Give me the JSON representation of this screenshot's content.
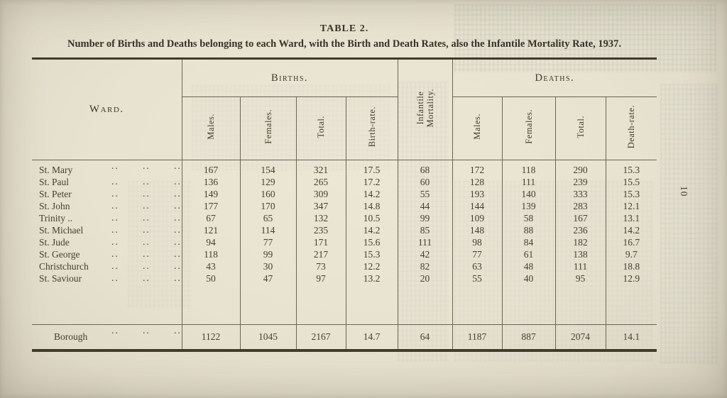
{
  "title": "TABLE 2.",
  "subtitle": "Number of Births and Deaths belonging to each Ward, with the Birth and Death Rates, also the Infantile Mortality Rate, 1937.",
  "page_number": "10",
  "table": {
    "col_ward": "Ward.",
    "group_births": "Births.",
    "group_deaths": "Deaths.",
    "col_infantile_line1": "Infantile",
    "col_infantile_line2": "Mortality.",
    "birth_columns": [
      "Males.",
      "Females.",
      "Total.",
      "Birth-rate."
    ],
    "death_columns": [
      "Males.",
      "Females.",
      "Total.",
      "Death-rate."
    ],
    "leader_dots": "..",
    "rows": [
      {
        "ward": "St. Mary",
        "suffix": "",
        "values": [
          "167",
          "154",
          "321",
          "17.5",
          "68",
          "172",
          "118",
          "290",
          "15.3"
        ]
      },
      {
        "ward": "St. Paul",
        "suffix": "",
        "values": [
          "136",
          "129",
          "265",
          "17.2",
          "60",
          "128",
          "111",
          "239",
          "15.5"
        ]
      },
      {
        "ward": "St. Peter",
        "suffix": "",
        "values": [
          "149",
          "160",
          "309",
          "14.2",
          "55",
          "193",
          "140",
          "333",
          "15.3"
        ]
      },
      {
        "ward": "St. John",
        "suffix": "",
        "values": [
          "177",
          "170",
          "347",
          "14.8",
          "44",
          "144",
          "139",
          "283",
          "12.1"
        ]
      },
      {
        "ward": "Trinity",
        "suffix": " ..",
        "values": [
          "67",
          "65",
          "132",
          "10.5",
          "99",
          "109",
          "58",
          "167",
          "13.1"
        ]
      },
      {
        "ward": "St. Michael",
        "suffix": "",
        "values": [
          "121",
          "114",
          "235",
          "14.2",
          "85",
          "148",
          "88",
          "236",
          "14.2"
        ]
      },
      {
        "ward": "St. Jude",
        "suffix": "",
        "values": [
          "94",
          "77",
          "171",
          "15.6",
          "111",
          "98",
          "84",
          "182",
          "16.7"
        ]
      },
      {
        "ward": "St. George",
        "suffix": "",
        "values": [
          "118",
          "99",
          "217",
          "15.3",
          "42",
          "77",
          "61",
          "138",
          "9.7"
        ]
      },
      {
        "ward": "Christchurch",
        "suffix": "",
        "values": [
          "43",
          "30",
          "73",
          "12.2",
          "82",
          "63",
          "48",
          "111",
          "18.8"
        ]
      },
      {
        "ward": "St. Saviour",
        "suffix": "",
        "values": [
          "50",
          "47",
          "97",
          "13.2",
          "20",
          "55",
          "40",
          "95",
          "12.9"
        ]
      }
    ],
    "total_row": {
      "ward": "Borough",
      "suffix": "",
      "values": [
        "1122",
        "1045",
        "2167",
        "14.7",
        "64",
        "1187",
        "887",
        "2074",
        "14.1"
      ]
    }
  }
}
